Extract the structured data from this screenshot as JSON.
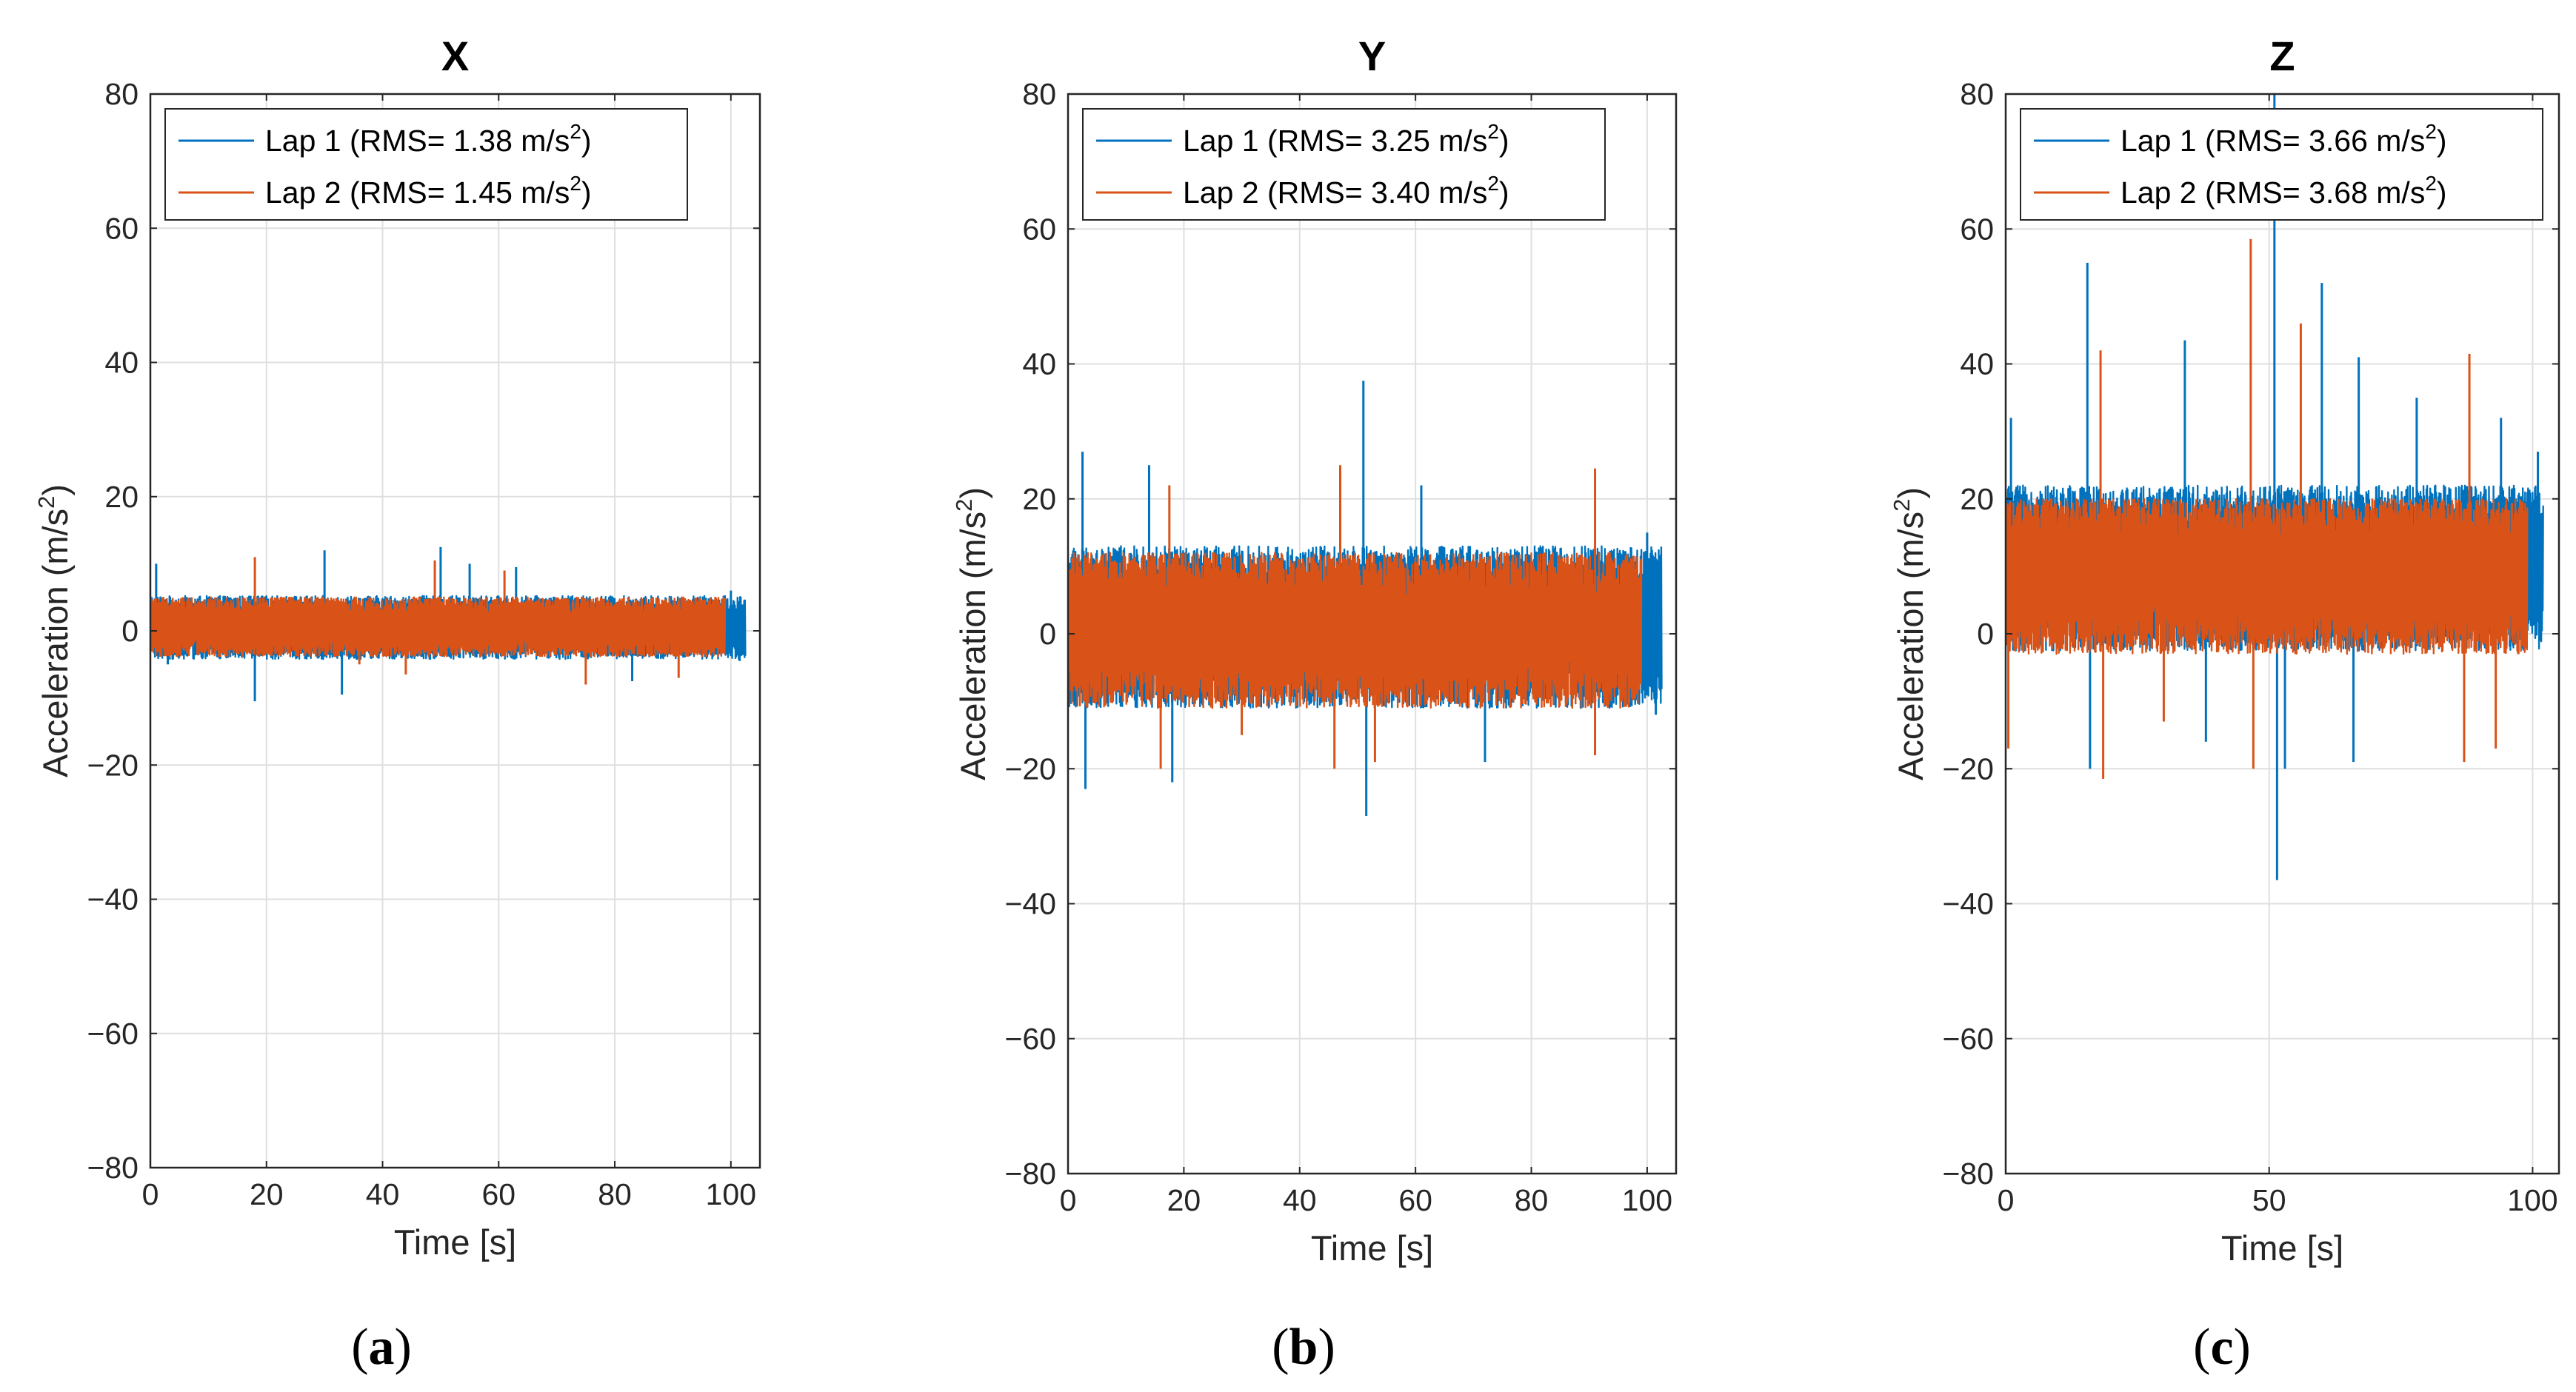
{
  "figure": {
    "colors": {
      "lap1": "#0072BD",
      "lap2": "#D95319",
      "grid": "#DFDFDF",
      "axis": "#262626"
    }
  },
  "chart_data": [
    {
      "id": "a",
      "type": "line",
      "title": "X",
      "caption_letter": "a",
      "xlabel": "Time [s]",
      "ylabel": "Acceleration (m/s^2)",
      "ylabel_base": "Acceleration (m/s",
      "ylabel_sup": "2",
      "ylabel_end": ")",
      "xlim": [
        0,
        105
      ],
      "ylim": [
        -80,
        80
      ],
      "xticks": [
        0,
        20,
        40,
        60,
        80,
        100
      ],
      "yticks": [
        -80,
        -60,
        -40,
        -20,
        0,
        20,
        40,
        60,
        80
      ],
      "grid": true,
      "legend_position": "top-left",
      "series": [
        {
          "name": "Lap 1 (RMS= 1.38 m/s^2)",
          "legend_base": "Lap 1 (RMS= 1.38 m/s",
          "legend_sup": "2",
          "legend_end": ")",
          "color": "#0072BD",
          "duration": 102.5,
          "mean": 0.5,
          "band_low": -4.2,
          "band_high": 5.2,
          "peaks": [
            [
              1,
              10
            ],
            [
              3,
              -5
            ],
            [
              18,
              -10.5
            ],
            [
              30,
              12
            ],
            [
              33,
              -9.5
            ],
            [
              50,
              12.5
            ],
            [
              55,
              10
            ],
            [
              63,
              9.5
            ],
            [
              83,
              -7.5
            ],
            [
              100,
              6
            ],
            [
              101.5,
              -4.5
            ]
          ]
        },
        {
          "name": "Lap 2 (RMS= 1.45 m/s^2)",
          "legend_base": "Lap 2 (RMS= 1.45 m/s",
          "legend_sup": "2",
          "legend_end": ")",
          "color": "#D95319",
          "duration": 99,
          "mean": 0.5,
          "band_low": -3.8,
          "band_high": 5.0,
          "peaks": [
            [
              18,
              11
            ],
            [
              36,
              -5
            ],
            [
              49,
              10.5
            ],
            [
              61,
              9
            ],
            [
              75,
              -8
            ],
            [
              91,
              -7
            ],
            [
              44,
              -6.5
            ]
          ]
        }
      ]
    },
    {
      "id": "b",
      "type": "line",
      "title": "Y",
      "caption_letter": "b",
      "xlabel": "Time [s]",
      "ylabel": "Acceleration (m/s^2)",
      "ylabel_base": "Acceleration (m/s",
      "ylabel_sup": "2",
      "ylabel_end": ")",
      "xlim": [
        0,
        105
      ],
      "ylim": [
        -80,
        80
      ],
      "xticks": [
        0,
        20,
        40,
        60,
        80,
        100
      ],
      "yticks": [
        -80,
        -60,
        -40,
        -20,
        0,
        20,
        40,
        60,
        80
      ],
      "grid": true,
      "legend_position": "top-left",
      "series": [
        {
          "name": "Lap 1 (RMS= 3.25 m/s^2)",
          "legend_base": "Lap 1 (RMS= 3.25 m/s",
          "legend_sup": "2",
          "legend_end": ")",
          "color": "#0072BD",
          "duration": 102.5,
          "mean": 1,
          "band_low": -11,
          "band_high": 13,
          "peaks": [
            [
              2.5,
              27
            ],
            [
              3,
              -23
            ],
            [
              14,
              25
            ],
            [
              18,
              -22
            ],
            [
              51,
              37.5
            ],
            [
              51.5,
              -27
            ],
            [
              61,
              22
            ],
            [
              72,
              -19
            ],
            [
              100,
              15
            ],
            [
              101.5,
              -12
            ]
          ]
        },
        {
          "name": "Lap 2 (RMS= 3.40 m/s^2)",
          "legend_base": "Lap 2 (RMS= 3.40 m/s",
          "legend_sup": "2",
          "legend_end": ")",
          "color": "#D95319",
          "duration": 99,
          "mean": 1,
          "band_low": -11,
          "band_high": 12,
          "peaks": [
            [
              17.5,
              22
            ],
            [
              16,
              -20
            ],
            [
              47,
              25
            ],
            [
              46,
              -20
            ],
            [
              53,
              -19
            ],
            [
              91,
              -18
            ],
            [
              91,
              24.5
            ],
            [
              30,
              -15
            ]
          ]
        }
      ]
    },
    {
      "id": "c",
      "type": "line",
      "title": "Z",
      "caption_letter": "c",
      "xlabel": "Time [s]",
      "ylabel": "Acceleration (m/s^2)",
      "ylabel_base": "Acceleration (m/s",
      "ylabel_sup": "2",
      "ylabel_end": ")",
      "xlim": [
        0,
        105
      ],
      "ylim": [
        -80,
        80
      ],
      "xticks": [
        0,
        50,
        100
      ],
      "yticks": [
        -80,
        -60,
        -40,
        -20,
        0,
        20,
        40,
        60,
        80
      ],
      "grid": true,
      "legend_position": "top-left",
      "series": [
        {
          "name": "Lap 1 (RMS= 3.66 m/s^2)",
          "legend_base": "Lap 1 (RMS= 3.66 m/s",
          "legend_sup": "2",
          "legend_end": ")",
          "color": "#0072BD",
          "duration": 102,
          "mean": 9.5,
          "band_low": -2.5,
          "band_high": 22,
          "peaks": [
            [
              1,
              32
            ],
            [
              15.5,
              55
            ],
            [
              16,
              -20
            ],
            [
              34,
              43.5
            ],
            [
              38,
              -16
            ],
            [
              51,
              80
            ],
            [
              51.5,
              -36.5
            ],
            [
              53,
              -20
            ],
            [
              60,
              52
            ],
            [
              67,
              41
            ],
            [
              66,
              -19
            ],
            [
              78,
              35
            ],
            [
              94,
              32
            ],
            [
              101,
              27
            ]
          ]
        },
        {
          "name": "Lap 2 (RMS= 3.68 m/s^2)",
          "legend_base": "Lap 2 (RMS= 3.68 m/s",
          "legend_sup": "2",
          "legend_end": ")",
          "color": "#D95319",
          "duration": 99,
          "mean": 9.5,
          "band_low": -3,
          "band_high": 20,
          "peaks": [
            [
              0.5,
              -17
            ],
            [
              18,
              42
            ],
            [
              18.5,
              -21.5
            ],
            [
              46.5,
              58.5
            ],
            [
              47,
              -20
            ],
            [
              56,
              46
            ],
            [
              88,
              41.5
            ],
            [
              87,
              -19
            ],
            [
              93,
              -17
            ],
            [
              30,
              -13
            ]
          ]
        }
      ]
    }
  ]
}
